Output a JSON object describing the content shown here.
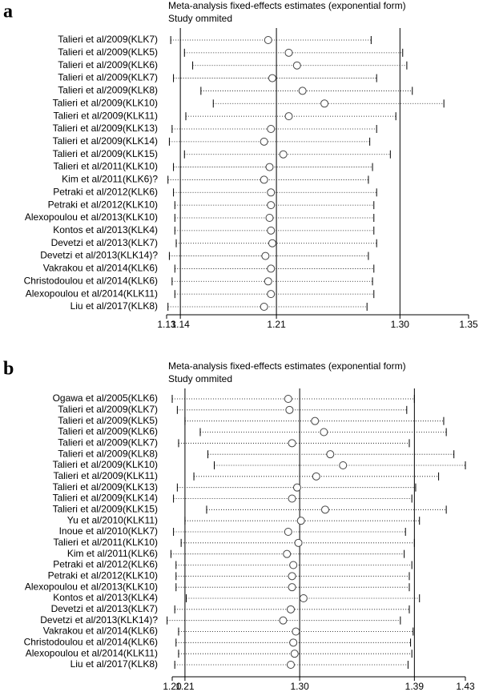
{
  "chart_data": [
    {
      "type": "forest",
      "panel_label": "a",
      "title": "Meta-analysis fixed-effects estimates (exponential form)",
      "subtitle": "Study ommited",
      "categories": [
        "Talieri et al/2009(KLK7)",
        "Talieri et al/2009(KLK5)",
        "Talieri et al/2009(KLK6)",
        "Talieri et al/2009(KLK7)",
        "Talieri et al/2009(KLK8)",
        "Talieri et al/2009(KLK10)",
        "Talieri et al/2009(KLK11)",
        "Talieri et al/2009(KLK13)",
        "Talieri et al/2009(KLK14)",
        "Talieri et al/2009(KLK15)",
        "Talieri et al/2011(KLK10)",
        "Kim et al/2011(KLK6)?",
        "Petraki et al/2012(KLK6)",
        "Petraki et al/2012(KLK10)",
        "Alexopoulou et al/2013(KLK10)",
        "Kontos et al/2013(KLK4)",
        "Devetzi et al/2013(KLK7)",
        "Devetzi et al/2013(KLK14)?",
        "Vakrakou et al/2014(KLK6)",
        "Christodoulou et al/2014(KLK6)",
        "Alexopoulou et al/2014(KLK11)",
        "Liu et al/2017(KLK8)"
      ],
      "values": [
        1.204,
        1.219,
        1.225,
        1.207,
        1.229,
        1.245,
        1.219,
        1.206,
        1.201,
        1.215,
        1.205,
        1.201,
        1.206,
        1.206,
        1.205,
        1.206,
        1.207,
        1.202,
        1.206,
        1.204,
        1.206,
        1.201
      ],
      "lower": [
        1.133,
        1.143,
        1.149,
        1.135,
        1.155,
        1.164,
        1.144,
        1.134,
        1.132,
        1.143,
        1.135,
        1.131,
        1.135,
        1.136,
        1.136,
        1.136,
        1.137,
        1.132,
        1.136,
        1.134,
        1.136,
        1.131
      ],
      "upper": [
        1.279,
        1.302,
        1.305,
        1.283,
        1.309,
        1.332,
        1.297,
        1.283,
        1.278,
        1.293,
        1.28,
        1.277,
        1.283,
        1.281,
        1.281,
        1.281,
        1.283,
        1.277,
        1.281,
        1.28,
        1.281,
        1.276
      ],
      "reference_lines": [
        1.14,
        1.21,
        1.3
      ],
      "xlim": [
        1.13,
        1.35
      ],
      "xticks": [
        1.13,
        1.14,
        1.21,
        {
          "value": 1.3,
          "label": "1.30"
        },
        1.35
      ]
    },
    {
      "type": "forest",
      "panel_label": "b",
      "title": "Meta-analysis fixed-effects estimates (exponential form)",
      "subtitle": "Study ommited",
      "categories": [
        "Ogawa et al/2005(KLK6)",
        "Talieri et al/2009(KLK7)",
        "Talieri et al/2009(KLK5)",
        "Talieri et al/2009(KLK6)",
        "Talieri et al/2009(KLK7)",
        "Talieri et al/2009(KLK8)",
        "Talieri et al/2009(KLK10)",
        "Talieri et al/2009(KLK11)",
        "Talieri et al/2009(KLK13)",
        "Talieri et al/2009(KLK14)",
        "Talieri et al/2009(KLK15)",
        "Yu et al/2010(KLK11)",
        "Inoue et al/2010(KLK7)",
        "Talieri et al/2011(KLK10)",
        "Kim et al/2011(KLK6)",
        "Petraki et al/2012(KLK6)",
        "Petraki et al/2012(KLK10)",
        "Alexopoulou et al/2013(KLK10)",
        "Kontos et al/2013(KLK4)",
        "Devetzi et al/2013(KLK7)",
        "Devetzi et al/2013(KLK14)?",
        "Vakrakou et al/2014(KLK6)",
        "Christodoulou et al/2014(KLK6)",
        "Alexopoulou et al/2014(KLK11)",
        "Liu et al/2017(KLK8)"
      ],
      "values": [
        1.291,
        1.292,
        1.312,
        1.319,
        1.294,
        1.324,
        1.334,
        1.313,
        1.298,
        1.294,
        1.32,
        1.301,
        1.291,
        1.299,
        1.29,
        1.295,
        1.294,
        1.294,
        1.303,
        1.293,
        1.287,
        1.297,
        1.295,
        1.296,
        1.293
      ],
      "lower": [
        1.2,
        1.204,
        1.21,
        1.222,
        1.205,
        1.228,
        1.233,
        1.217,
        1.204,
        1.201,
        1.227,
        1.21,
        1.201,
        1.207,
        1.199,
        1.203,
        1.203,
        1.203,
        1.211,
        1.202,
        1.196,
        1.205,
        1.203,
        1.205,
        1.202
      ],
      "upper": [
        1.39,
        1.384,
        1.413,
        1.415,
        1.386,
        1.421,
        1.43,
        1.409,
        1.391,
        1.388,
        1.415,
        1.394,
        1.383,
        1.39,
        1.382,
        1.388,
        1.386,
        1.386,
        1.394,
        1.386,
        1.379,
        1.389,
        1.387,
        1.388,
        1.385
      ],
      "reference_lines": [
        1.21,
        1.3,
        1.39
      ],
      "xlim": [
        1.2,
        1.43
      ],
      "xticks": [
        {
          "value": 1.2,
          "label": "1.20"
        },
        1.21,
        {
          "value": 1.3,
          "label": "1.30"
        },
        1.39,
        1.43
      ]
    }
  ]
}
